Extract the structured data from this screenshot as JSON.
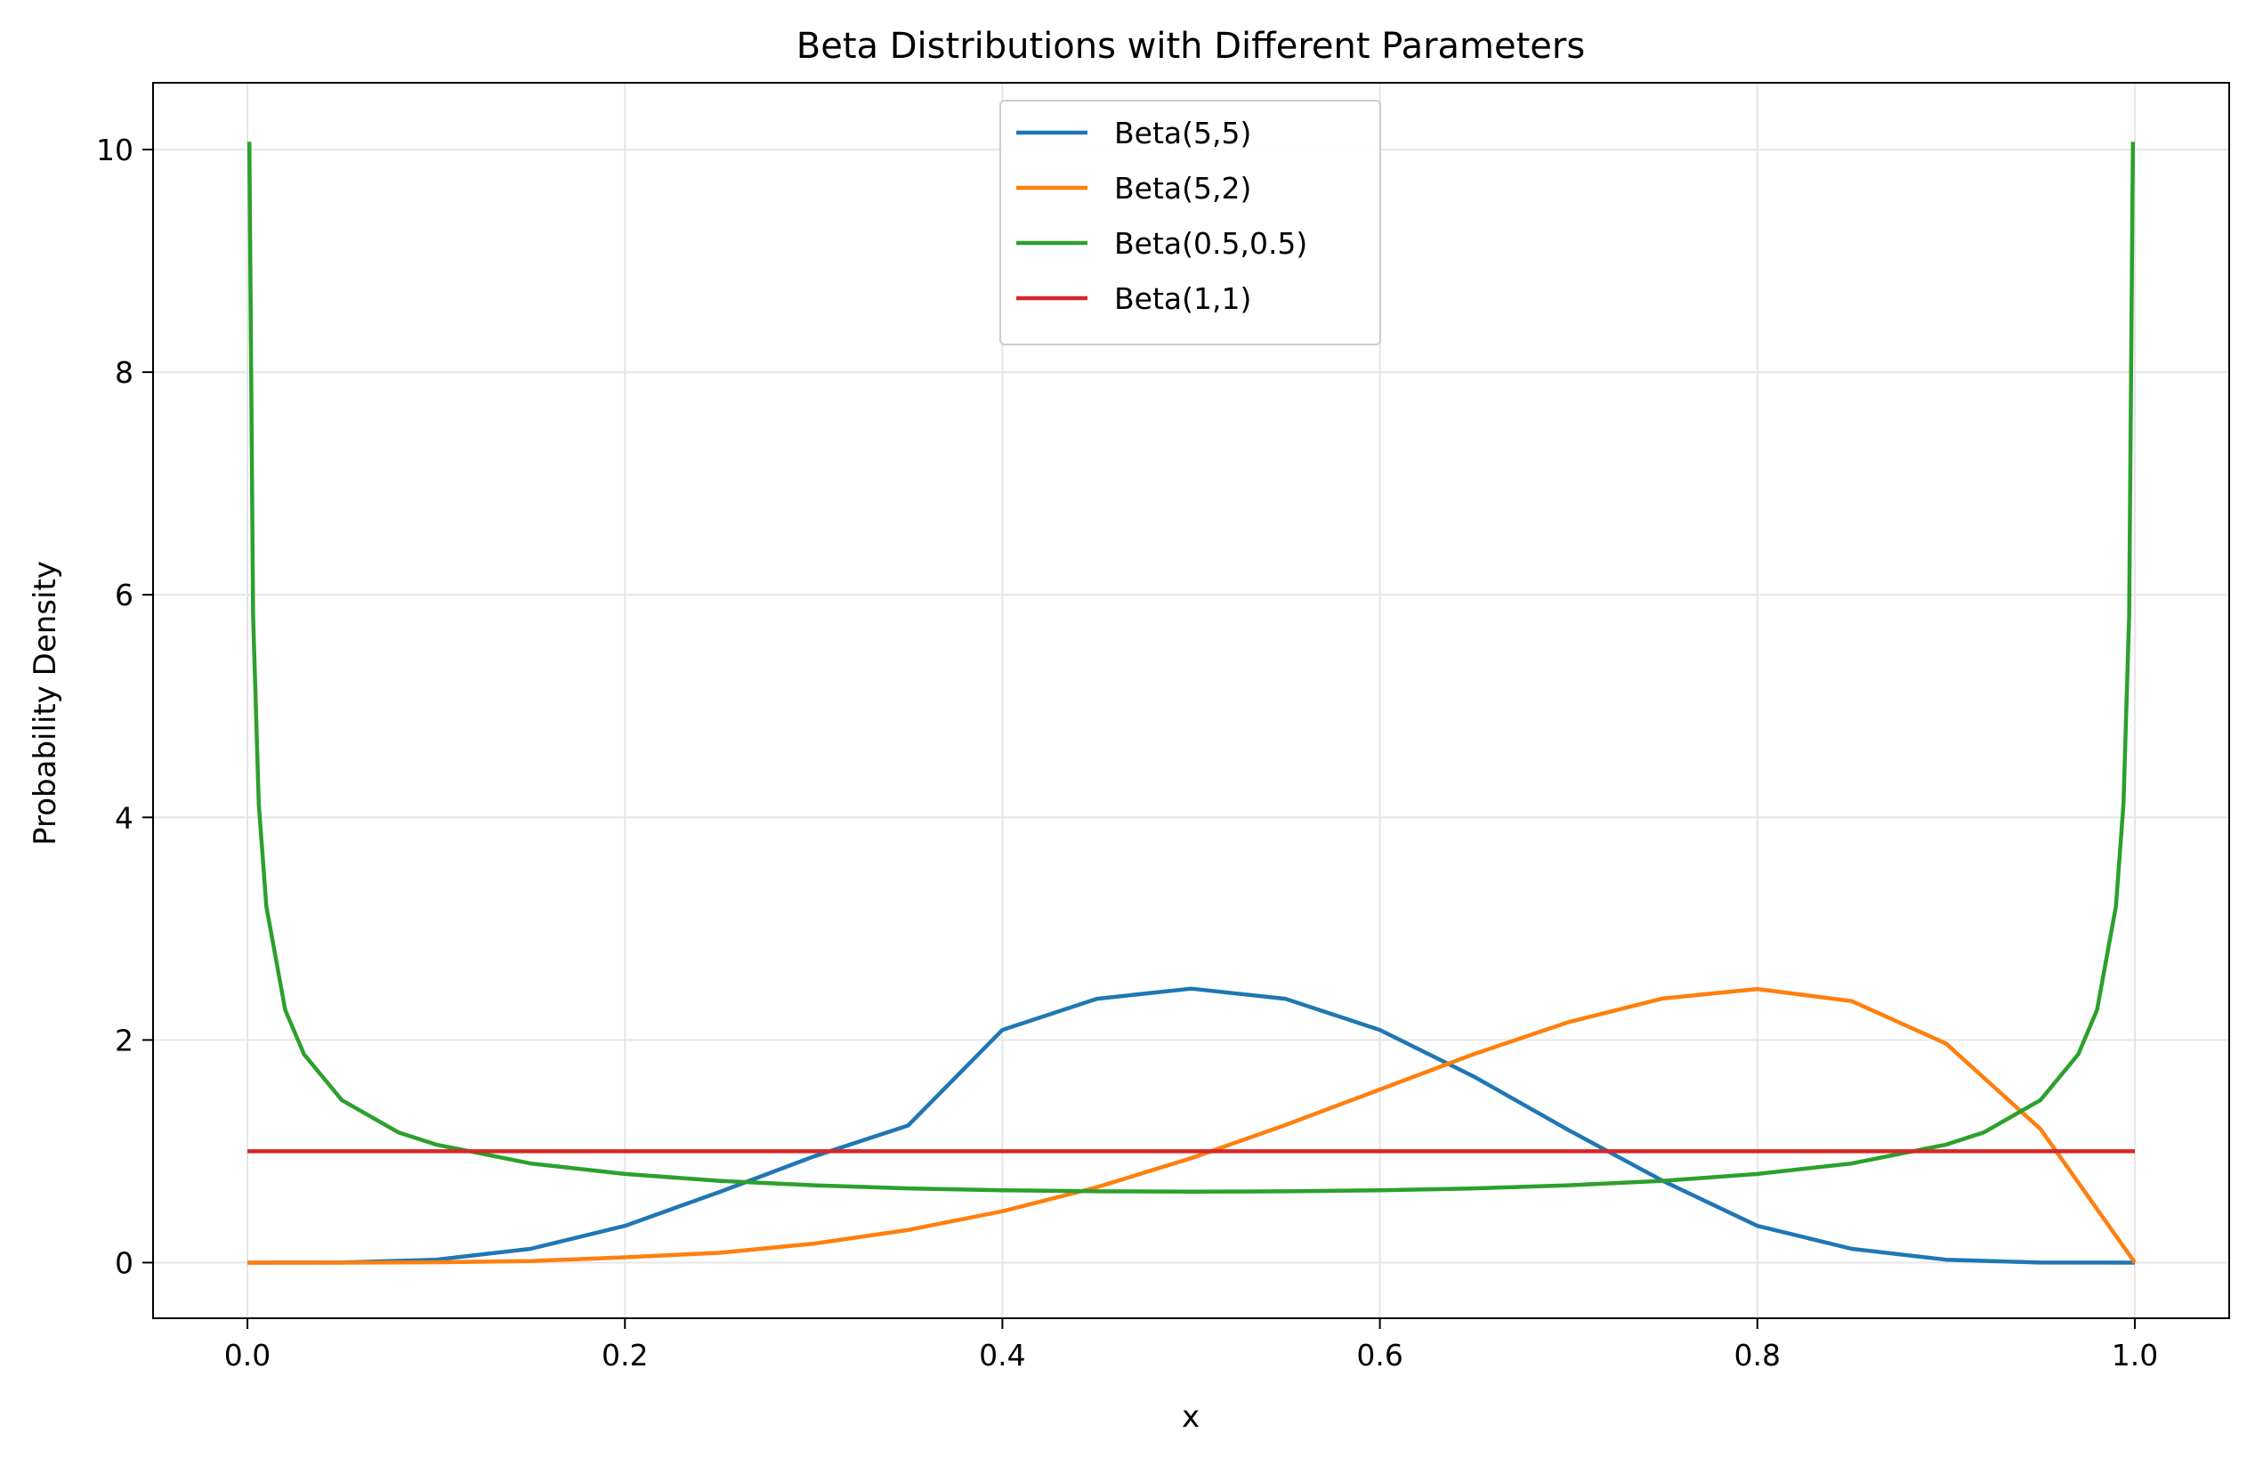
{
  "chart_data": {
    "type": "line",
    "title": "Beta Distributions with Different Parameters",
    "xlabel": "x",
    "ylabel": "Probability Density",
    "xlim": [
      -0.05,
      1.05
    ],
    "ylim": [
      -0.5,
      10.6
    ],
    "xticks": [
      0.0,
      0.2,
      0.4,
      0.6,
      0.8,
      1.0
    ],
    "xtick_labels": [
      "0.0",
      "0.2",
      "0.4",
      "0.6",
      "0.8",
      "1.0"
    ],
    "yticks": [
      0,
      2,
      4,
      6,
      8,
      10
    ],
    "ytick_labels": [
      "0",
      "2",
      "4",
      "6",
      "8",
      "10"
    ],
    "grid": true,
    "legend_position": "top-center",
    "series": [
      {
        "name": "Beta(5,5)",
        "color": "#1f77b4",
        "x": [
          0.0,
          0.05,
          0.1,
          0.15,
          0.2,
          0.25,
          0.3,
          0.35,
          0.4,
          0.45,
          0.5,
          0.55,
          0.6,
          0.65,
          0.7,
          0.75,
          0.8,
          0.85,
          0.9,
          0.95,
          1.0
        ],
        "y": [
          0.0,
          0.001,
          0.026,
          0.124,
          0.33,
          0.634,
          0.953,
          1.231,
          2.09,
          2.37,
          2.461,
          2.37,
          2.09,
          1.67,
          1.19,
          0.734,
          0.33,
          0.124,
          0.026,
          0.001,
          0.0
        ]
      },
      {
        "name": "Beta(5,2)",
        "color": "#ff7f0e",
        "x": [
          0.0,
          0.05,
          0.1,
          0.15,
          0.2,
          0.25,
          0.3,
          0.35,
          0.4,
          0.45,
          0.5,
          0.55,
          0.6,
          0.65,
          0.7,
          0.75,
          0.8,
          0.85,
          0.9,
          0.95,
          1.0
        ],
        "y": [
          0.0,
          0.0002,
          0.003,
          0.0135,
          0.048,
          0.088,
          0.17,
          0.293,
          0.461,
          0.677,
          0.9375,
          1.236,
          1.555,
          1.874,
          2.161,
          2.373,
          2.458,
          2.349,
          1.968,
          1.2,
          0.0
        ]
      },
      {
        "name": "Beta(0.5,0.5)",
        "color": "#2ca02c",
        "x": [
          0.001,
          0.003,
          0.006,
          0.01,
          0.02,
          0.03,
          0.05,
          0.08,
          0.1,
          0.15,
          0.2,
          0.25,
          0.3,
          0.35,
          0.4,
          0.45,
          0.5,
          0.55,
          0.6,
          0.65,
          0.7,
          0.75,
          0.8,
          0.85,
          0.9,
          0.92,
          0.95,
          0.97,
          0.98,
          0.99,
          0.994,
          0.997,
          0.999
        ],
        "y": [
          10.07,
          5.82,
          4.12,
          3.2,
          2.27,
          1.87,
          1.46,
          1.17,
          1.06,
          0.891,
          0.796,
          0.735,
          0.695,
          0.667,
          0.65,
          0.64,
          0.637,
          0.64,
          0.65,
          0.667,
          0.695,
          0.735,
          0.796,
          0.891,
          1.06,
          1.17,
          1.46,
          1.87,
          2.27,
          3.2,
          4.12,
          5.82,
          10.07
        ]
      },
      {
        "name": "Beta(1,1)",
        "color": "#d62728",
        "x": [
          0.0,
          1.0
        ],
        "y": [
          1.0,
          1.0
        ]
      }
    ]
  }
}
